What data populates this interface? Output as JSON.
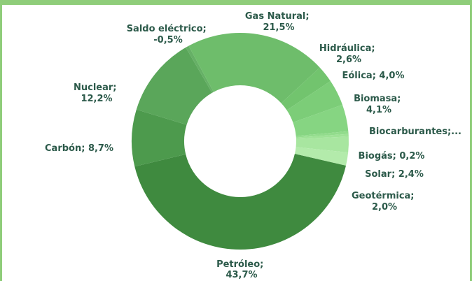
{
  "colors": {
    "frame": "#8fcd7a",
    "label": "#2c5a4a",
    "slices": {
      "Petróleo": "#3f8a3f",
      "Carbón": "#4d9a4d",
      "Nuclear": "#5aa65a",
      "Saldo eléctrico": "#66b066",
      "Gas Natural": "#6ebd6b",
      "Hidráulica": "#72c46e",
      "Eólica": "#7ccd78",
      "Biomasa": "#86d582",
      "Biocarburantes": "#92dc8c",
      "Biogás": "#9ee296",
      "Solar": "#a8e6a0",
      "Geotérmica": "#b3ebab"
    }
  },
  "chart_data": {
    "type": "pie",
    "donut": true,
    "unit": "%",
    "slices": [
      {
        "name": "Petróleo",
        "value": 43.7,
        "label": "Petróleo; 43,7%"
      },
      {
        "name": "Carbón",
        "value": 8.7,
        "label": "Carbón; 8,7%"
      },
      {
        "name": "Nuclear",
        "value": 12.2,
        "label": "Nuclear; 12,2%"
      },
      {
        "name": "Saldo eléctrico",
        "value": -0.5,
        "label": "Saldo eléctrico; -0,5%"
      },
      {
        "name": "Gas Natural",
        "value": 21.5,
        "label": "Gas Natural; 21,5%"
      },
      {
        "name": "Hidráulica",
        "value": 2.6,
        "label": "Hidráulica; 2,6%"
      },
      {
        "name": "Eólica",
        "value": 4.0,
        "label": "Eólica; 4,0%"
      },
      {
        "name": "Biomasa",
        "value": 4.1,
        "label": "Biomasa; 4,1%"
      },
      {
        "name": "Biocarburantes",
        "value": null,
        "label": "Biocarburantes;..."
      },
      {
        "name": "Biogás",
        "value": 0.2,
        "label": "Biogás; 0,2%"
      },
      {
        "name": "Solar",
        "value": 2.4,
        "label": "Solar; 2,4%"
      },
      {
        "name": "Geotérmica",
        "value": 2.0,
        "label": "Geotérmica; 2,0%"
      }
    ]
  }
}
